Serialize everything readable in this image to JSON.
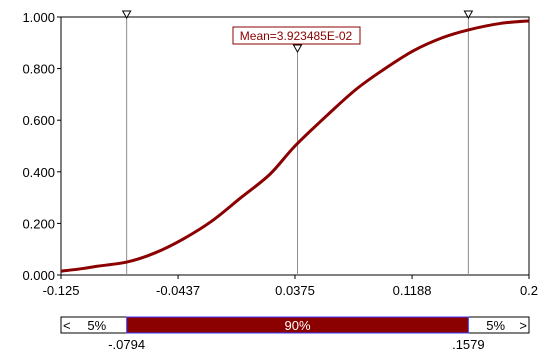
{
  "chart_data": {
    "type": "line",
    "title": "",
    "xlabel": "",
    "ylabel": "",
    "xlim": [
      -0.125,
      0.2
    ],
    "ylim": [
      0,
      1
    ],
    "x_tick_labels": [
      "-0.125",
      "-0.0437",
      "0.0375",
      "0.1188",
      "0.2"
    ],
    "x_tick_values": [
      -0.125,
      -0.0437,
      0.0375,
      0.1188,
      0.2
    ],
    "y_tick_labels": [
      "0.000",
      "0.200",
      "0.400",
      "0.600",
      "0.800",
      "1.000"
    ],
    "y_tick_values": [
      0,
      0.2,
      0.4,
      0.6,
      0.8,
      1.0
    ],
    "series": [
      {
        "color": "#8b0000",
        "x": [
          -0.125,
          -0.11,
          -0.1,
          -0.0794,
          -0.06,
          -0.04,
          -0.02,
          0.0,
          0.02,
          0.0375,
          0.06,
          0.08,
          0.1,
          0.12,
          0.14,
          0.1579,
          0.18,
          0.2
        ],
        "y": [
          0.015,
          0.025,
          0.034,
          0.05,
          0.085,
          0.14,
          0.21,
          0.3,
          0.39,
          0.5,
          0.62,
          0.72,
          0.8,
          0.87,
          0.92,
          0.95,
          0.975,
          0.985
        ]
      }
    ],
    "mean_label": "Mean=3.923485E-02",
    "mean_value": 0.03923485,
    "delimiters": {
      "left_value": -0.0794,
      "right_value": 0.1579,
      "left_label": "-.0794",
      "right_label": ".1579",
      "left_pct": "5%",
      "middle_pct": "90%",
      "right_pct": "5%"
    },
    "grid": false,
    "colors": {
      "curve": "#8b0000",
      "band_fill": "#8b0000",
      "band_edge": "#3a3aff"
    }
  }
}
